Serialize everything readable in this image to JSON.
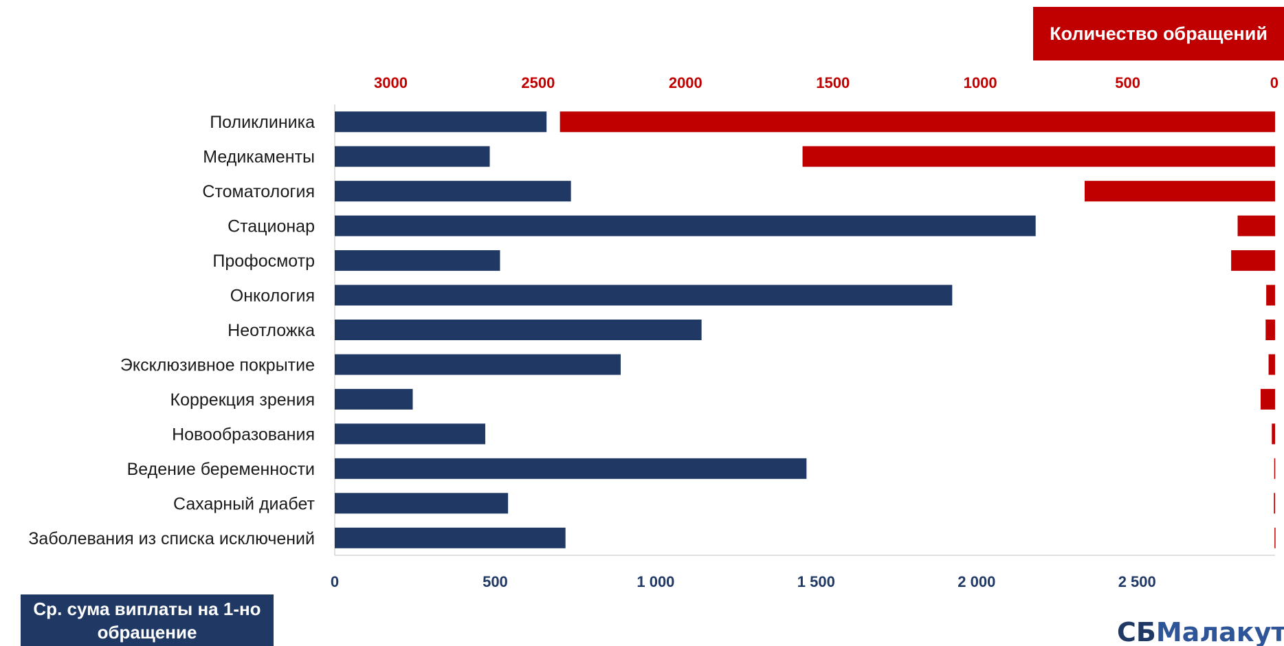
{
  "badges": {
    "count": "Количество обращений",
    "avg": "Ср. сума виплаты на 1-но обращение"
  },
  "logo": {
    "part1": "СБ",
    "part2": "Малакут"
  },
  "colors": {
    "navy": "#1f3864",
    "red": "#c00000",
    "axis": "#bfbfbf"
  },
  "chart_data": [
    {
      "type": "bar",
      "orientation": "horizontal",
      "series": [
        {
          "values": [
            660,
            483,
            736,
            2184,
            515,
            1924,
            1143,
            891,
            243,
            469,
            1470,
            540,
            719
          ]
        }
      ],
      "categories": [
        "Поликлиника",
        "Медикаменты",
        "Стоматология",
        "Стационар",
        "Профосмотр",
        "Онкология",
        "Неотложка",
        "Эксклюзивное покрытие",
        "Коррекция зрения",
        "Новообразования",
        "Ведение беременности",
        "Сахарный диабет",
        "Заболевания из списка исключений"
      ],
      "xlim": [
        0,
        2930
      ],
      "ticks": [
        0,
        500,
        1000,
        1500,
        2000,
        2500
      ],
      "tick_labels": [
        "0",
        "500",
        "1 000",
        "1 500",
        "2 000",
        "2 500"
      ],
      "axis_position": "bottom"
    },
    {
      "type": "bar",
      "orientation": "horizontal",
      "direction": "reversed",
      "series": [
        {
          "values": [
            2426,
            1603,
            646,
            127,
            149,
            30,
            32,
            22,
            49,
            11,
            3,
            4,
            2
          ]
        }
      ],
      "categories": [
        "Поликлиника",
        "Медикаменты",
        "Стоматология",
        "Стационар",
        "Профосмотр",
        "Онкология",
        "Неотложка",
        "Эксклюзивное покрытие",
        "Коррекция зрения",
        "Новообразования",
        "Ведение беременности",
        "Сахарный диабет",
        "Заболевания из списка исключений"
      ],
      "xlim": [
        0,
        3190
      ],
      "ticks": [
        3000,
        2500,
        2000,
        1500,
        1000,
        500,
        0
      ],
      "tick_labels": [
        "3000",
        "2500",
        "2000",
        "1500",
        "1000",
        "500",
        "0"
      ],
      "axis_position": "top"
    }
  ]
}
